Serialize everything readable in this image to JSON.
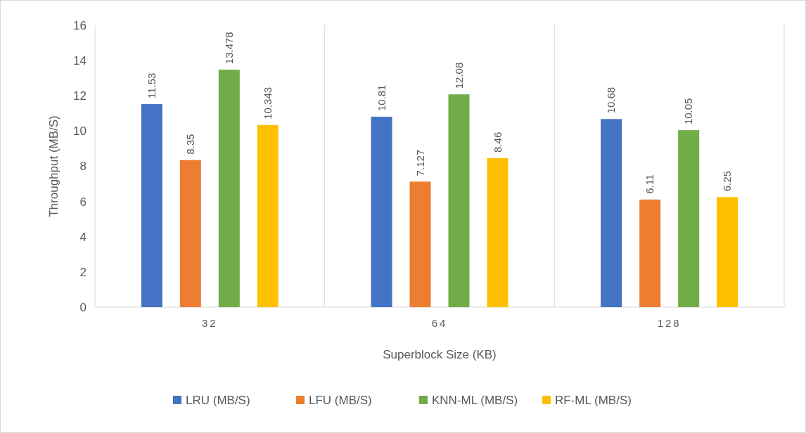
{
  "chart_data": {
    "type": "bar",
    "xlabel": "Superblock Size (KB)",
    "ylabel": "Throughput (MB/S)",
    "categories": [
      "32",
      "64",
      "128"
    ],
    "series": [
      {
        "name": "LRU (MB/S)",
        "color": "#4472c4",
        "values": [
          11.53,
          10.81,
          10.68
        ]
      },
      {
        "name": "LFU (MB/S)",
        "color": "#ed7d31",
        "values": [
          8.35,
          7.127,
          6.11
        ]
      },
      {
        "name": "KNN-ML (MB/S)",
        "color": "#70ad47",
        "values": [
          13.478,
          12.08,
          10.05
        ]
      },
      {
        "name": "RF-ML (MB/S)",
        "color": "#ffc000",
        "values": [
          10.343,
          8.46,
          6.25
        ]
      }
    ],
    "ylim": [
      0,
      16
    ],
    "yticks": [
      0,
      2,
      4,
      6,
      8,
      10,
      12,
      14,
      16
    ],
    "grid": "x",
    "legend": "bottom",
    "data_labels": true
  }
}
